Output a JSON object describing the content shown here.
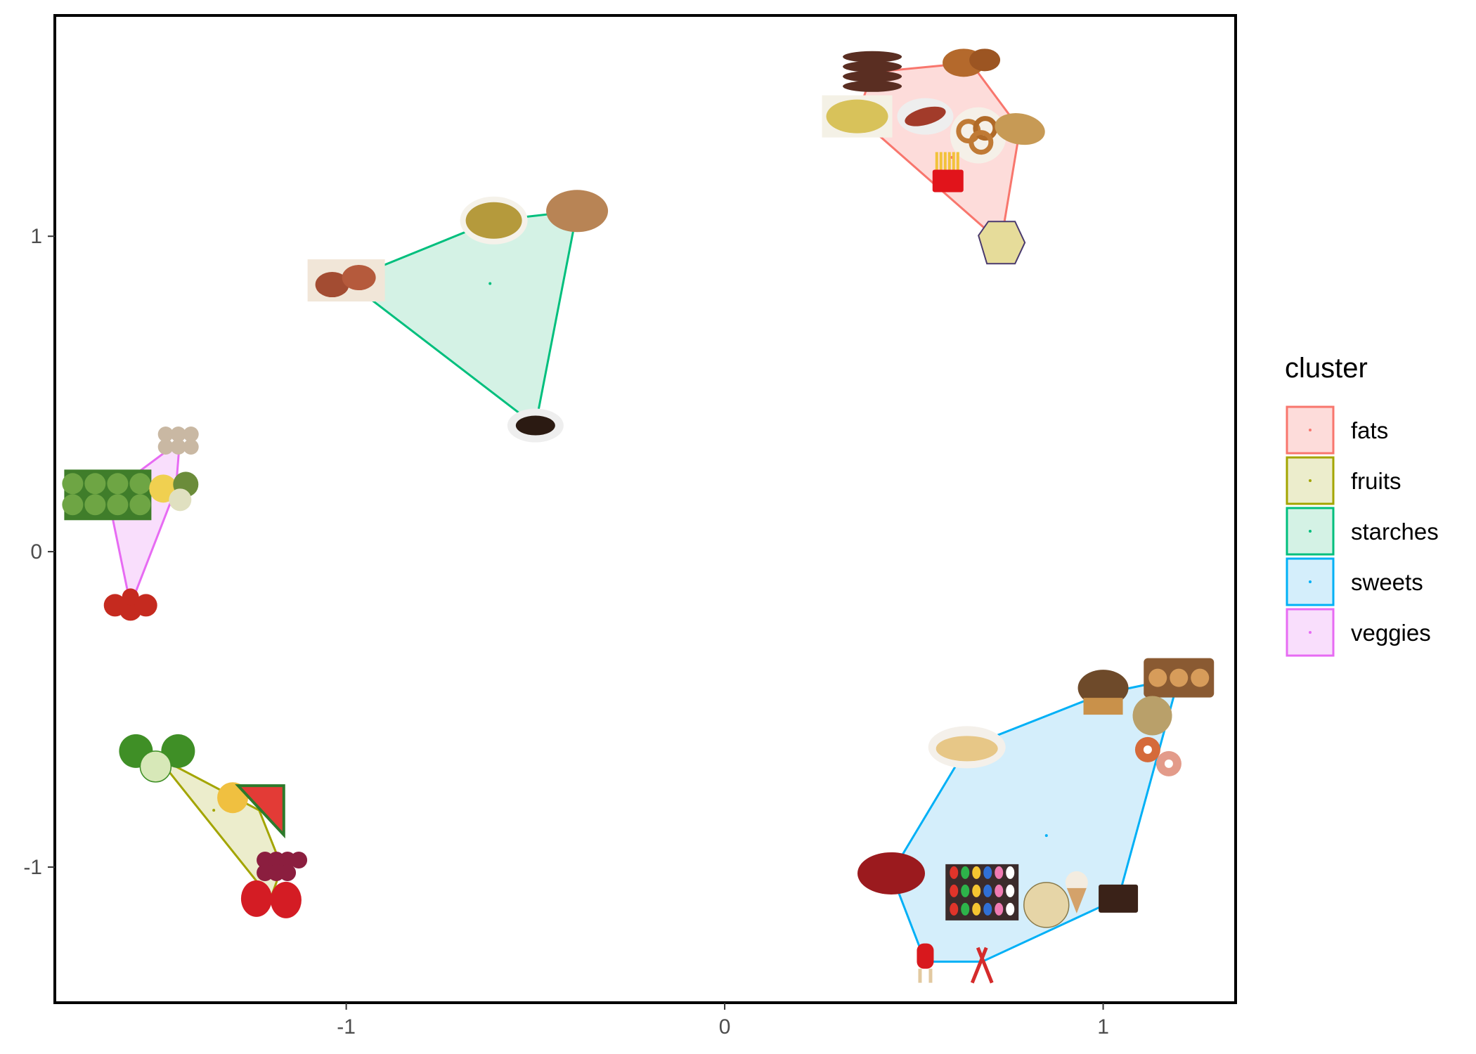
{
  "chart_data": {
    "type": "scatter",
    "title": "",
    "xlabel": "",
    "ylabel": "",
    "xlim": [
      -1.77,
      1.35
    ],
    "ylim": [
      -1.43,
      1.7
    ],
    "x_ticks": [
      {
        "value": -1,
        "label": "-1"
      },
      {
        "value": 0,
        "label": "0"
      },
      {
        "value": 1,
        "label": "1"
      }
    ],
    "y_ticks": [
      {
        "value": -1,
        "label": "-1"
      },
      {
        "value": 0,
        "label": "0"
      },
      {
        "value": 1,
        "label": "1"
      }
    ],
    "grid": false,
    "legend": {
      "title": "cluster",
      "placement": "right"
    },
    "series": [
      {
        "name": "fats",
        "color": "#F8766D",
        "fill": "#FDDCDA",
        "centroid": [
          0.6,
          1.25
        ],
        "points": [
          {
            "item": "sausages",
            "icon": "sausage-icon",
            "x": 0.39,
            "y": 1.52
          },
          {
            "item": "fried chicken",
            "icon": "fried-chicken-icon",
            "x": 0.65,
            "y": 1.55
          },
          {
            "item": "mac and cheese",
            "icon": "mac-and-cheese-icon",
            "x": 0.35,
            "y": 1.38
          },
          {
            "item": "bacon",
            "icon": "bacon-icon",
            "x": 0.53,
            "y": 1.38
          },
          {
            "item": "onion rings",
            "icon": "onion-rings-icon",
            "x": 0.67,
            "y": 1.32
          },
          {
            "item": "fish fillet",
            "icon": "fish-fillet-icon",
            "x": 0.78,
            "y": 1.34
          },
          {
            "item": "french fries",
            "icon": "french-fries-icon",
            "x": 0.59,
            "y": 1.2
          },
          {
            "item": "potato chips",
            "icon": "potato-chips-icon",
            "x": 0.73,
            "y": 0.98
          }
        ]
      },
      {
        "name": "fruits",
        "color": "#A3A500",
        "fill": "#ECEDCC",
        "centroid": [
          -1.35,
          -0.82
        ],
        "points": [
          {
            "item": "apples",
            "icon": "apple-icon",
            "x": -1.5,
            "y": -0.65
          },
          {
            "item": "pineapple",
            "icon": "pineapple-icon",
            "x": -1.3,
            "y": -0.78
          },
          {
            "item": "watermelon",
            "icon": "watermelon-icon",
            "x": -1.23,
            "y": -0.82
          },
          {
            "item": "raspberries",
            "icon": "raspberry-icon",
            "x": -1.17,
            "y": -1.0
          },
          {
            "item": "strawberries",
            "icon": "strawberry-icon",
            "x": -1.2,
            "y": -1.1
          }
        ]
      },
      {
        "name": "starches",
        "color": "#00BF7D",
        "fill": "#D4F2E5",
        "centroid": [
          -0.62,
          0.85
        ],
        "points": [
          {
            "item": "soup",
            "icon": "soup-icon",
            "x": -0.61,
            "y": 1.05
          },
          {
            "item": "rice",
            "icon": "rice-icon",
            "x": -0.39,
            "y": 1.08
          },
          {
            "item": "potatoes",
            "icon": "potato-icon",
            "x": -1.0,
            "y": 0.86
          },
          {
            "item": "coffee grounds",
            "icon": "coffee-grounds-icon",
            "x": -0.5,
            "y": 0.4
          }
        ]
      },
      {
        "name": "sweets",
        "color": "#00B0F6",
        "fill": "#D4EEFB",
        "centroid": [
          0.85,
          -0.9
        ],
        "points": [
          {
            "item": "cinnamon rolls",
            "icon": "cinnamon-roll-icon",
            "x": 1.2,
            "y": -0.4
          },
          {
            "item": "muffin",
            "icon": "muffin-icon",
            "x": 1.0,
            "y": -0.45
          },
          {
            "item": "cookies",
            "icon": "cookie-icon",
            "x": 1.13,
            "y": -0.52
          },
          {
            "item": "crepes",
            "icon": "crepe-icon",
            "x": 0.64,
            "y": -0.62
          },
          {
            "item": "donuts",
            "icon": "donut-icon",
            "x": 1.14,
            "y": -0.65
          },
          {
            "item": "cherry pie",
            "icon": "pie-icon",
            "x": 0.44,
            "y": -1.02
          },
          {
            "item": "jelly beans",
            "icon": "jelly-beans-icon",
            "x": 0.68,
            "y": -1.08
          },
          {
            "item": "cheesecake",
            "icon": "cheesecake-icon",
            "x": 0.85,
            "y": -1.12
          },
          {
            "item": "ice cream cone",
            "icon": "ice-cream-icon",
            "x": 0.93,
            "y": -1.08
          },
          {
            "item": "chocolate",
            "icon": "chocolate-icon",
            "x": 1.04,
            "y": -1.1
          },
          {
            "item": "popsicle",
            "icon": "popsicle-icon",
            "x": 0.53,
            "y": -1.3
          },
          {
            "item": "candy canes",
            "icon": "candy-cane-icon",
            "x": 0.68,
            "y": -1.3
          }
        ]
      },
      {
        "name": "veggies",
        "color": "#E76BF3",
        "fill": "#F9DEFC",
        "centroid": [
          -1.52,
          0.15
        ],
        "points": [
          {
            "item": "mushrooms",
            "icon": "mushroom-icon",
            "x": -1.44,
            "y": 0.35
          },
          {
            "item": "broccoli",
            "icon": "broccoli-icon",
            "x": -1.63,
            "y": 0.18
          },
          {
            "item": "mixed vegetables",
            "icon": "mixed-vegetables-icon",
            "x": -1.45,
            "y": 0.2
          },
          {
            "item": "tomatoes",
            "icon": "tomato-icon",
            "x": -1.57,
            "y": -0.17
          }
        ]
      }
    ]
  }
}
